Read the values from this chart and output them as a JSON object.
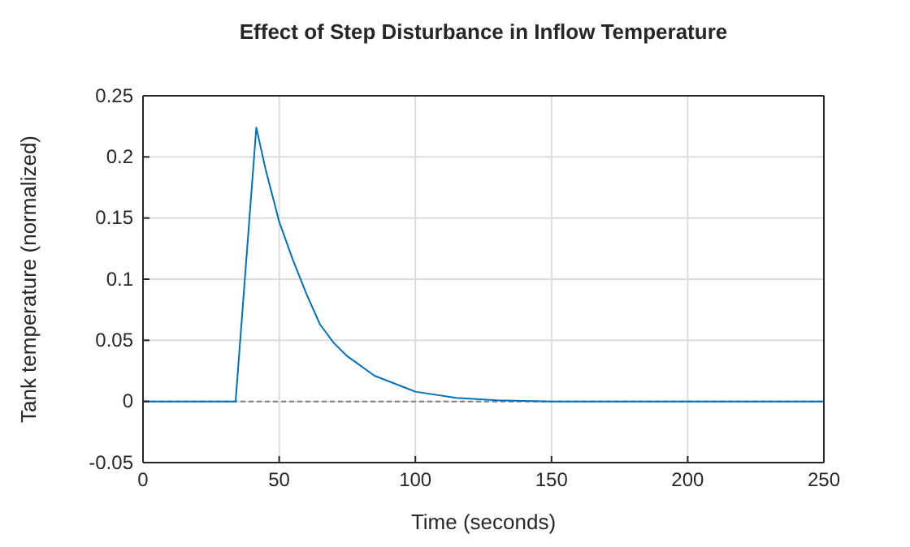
{
  "chart_data": {
    "type": "line",
    "title": "Effect of Step Disturbance in Inflow Temperature",
    "xlabel": "Time (seconds)",
    "ylabel": "Tank temperature (normalized)",
    "x": [
      0,
      34,
      41.6,
      45,
      50,
      55,
      60,
      65,
      70,
      75,
      85,
      100,
      115,
      130,
      150,
      200,
      250
    ],
    "series": [
      {
        "color": "#0072bd",
        "values": [
          0,
          0,
          0.224,
          0.19,
          0.147,
          0.116,
          0.088,
          0.063,
          0.048,
          0.037,
          0.021,
          0.008,
          0.003,
          0.001,
          0,
          0,
          0
        ]
      }
    ],
    "xlim": [
      0,
      250
    ],
    "xticks": [
      0,
      50,
      100,
      150,
      200,
      250
    ],
    "ylim": [
      -0.05,
      0.25
    ],
    "yticks": [
      -0.05,
      0,
      0.05,
      0.1,
      0.15,
      0.2,
      0.25
    ],
    "ref_lines": [
      {
        "axis": "y",
        "value": 0,
        "color": "#808080",
        "line_style": "dashed"
      }
    ],
    "grid": true
  }
}
